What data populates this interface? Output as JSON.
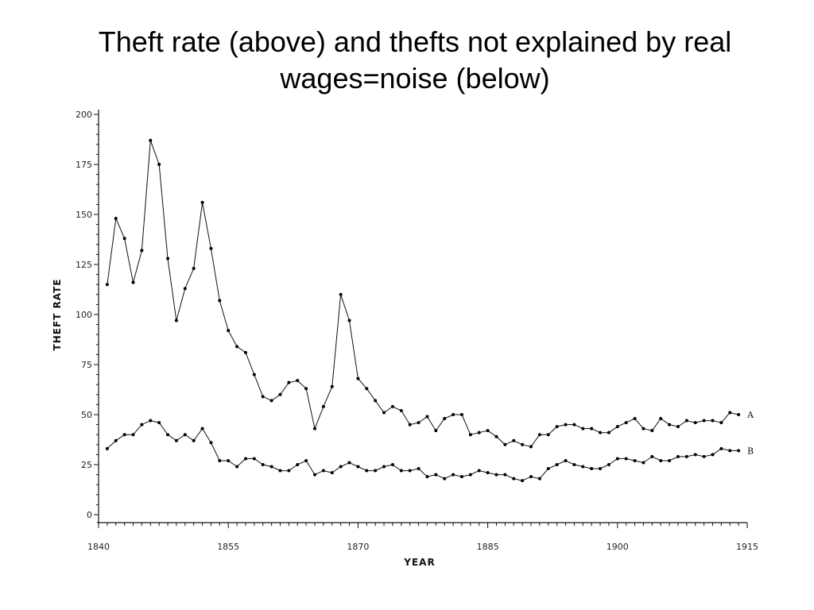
{
  "slide": {
    "title": "Theft rate (above) and thefts not explained by real wages=noise (below)"
  },
  "chart_data": {
    "type": "line",
    "title": "",
    "xlabel": "YEAR",
    "ylabel": "THEFT RATE",
    "xlim": [
      1840,
      1915
    ],
    "ylim": [
      0,
      200
    ],
    "x_ticks": [
      1840,
      1855,
      1870,
      1885,
      1900,
      1915
    ],
    "y_ticks": [
      0,
      25,
      50,
      75,
      100,
      125,
      150,
      175,
      200
    ],
    "grid": false,
    "legend": "none",
    "colors": {
      "line": "#111111",
      "marker": "#000000"
    },
    "series": [
      {
        "name": "A",
        "x": [
          1841,
          1842,
          1843,
          1844,
          1845,
          1846,
          1847,
          1848,
          1849,
          1850,
          1851,
          1852,
          1853,
          1854,
          1855,
          1856,
          1857,
          1858,
          1859,
          1860,
          1861,
          1862,
          1863,
          1864,
          1865,
          1866,
          1867,
          1868,
          1869,
          1870,
          1871,
          1872,
          1873,
          1874,
          1875,
          1876,
          1877,
          1878,
          1879,
          1880,
          1881,
          1882,
          1883,
          1884,
          1885,
          1886,
          1887,
          1888,
          1889,
          1890,
          1891,
          1892,
          1893,
          1894,
          1895,
          1896,
          1897,
          1898,
          1899,
          1900,
          1901,
          1902,
          1903,
          1904,
          1905,
          1906,
          1907,
          1908,
          1909,
          1910,
          1911,
          1912,
          1913,
          1914
        ],
        "values": [
          115,
          148,
          138,
          116,
          132,
          187,
          175,
          128,
          97,
          113,
          123,
          156,
          133,
          107,
          92,
          84,
          81,
          70,
          59,
          57,
          60,
          66,
          67,
          63,
          43,
          54,
          64,
          110,
          97,
          68,
          63,
          57,
          51,
          54,
          52,
          45,
          46,
          49,
          42,
          48,
          50,
          50,
          40,
          41,
          42,
          39,
          35,
          37,
          35,
          34,
          40,
          40,
          44,
          45,
          45,
          43,
          43,
          41,
          41,
          44,
          46,
          48,
          43,
          42,
          48,
          45,
          44,
          47,
          46,
          47,
          47,
          46,
          51,
          50
        ]
      },
      {
        "name": "B",
        "x": [
          1841,
          1842,
          1843,
          1844,
          1845,
          1846,
          1847,
          1848,
          1849,
          1850,
          1851,
          1852,
          1853,
          1854,
          1855,
          1856,
          1857,
          1858,
          1859,
          1860,
          1861,
          1862,
          1863,
          1864,
          1865,
          1866,
          1867,
          1868,
          1869,
          1870,
          1871,
          1872,
          1873,
          1874,
          1875,
          1876,
          1877,
          1878,
          1879,
          1880,
          1881,
          1882,
          1883,
          1884,
          1885,
          1886,
          1887,
          1888,
          1889,
          1890,
          1891,
          1892,
          1893,
          1894,
          1895,
          1896,
          1897,
          1898,
          1899,
          1900,
          1901,
          1902,
          1903,
          1904,
          1905,
          1906,
          1907,
          1908,
          1909,
          1910,
          1911,
          1912,
          1913,
          1914
        ],
        "values": [
          33,
          37,
          40,
          40,
          45,
          47,
          46,
          40,
          37,
          40,
          37,
          43,
          36,
          27,
          27,
          24,
          28,
          28,
          25,
          24,
          22,
          22,
          25,
          27,
          20,
          22,
          21,
          24,
          26,
          24,
          22,
          22,
          24,
          25,
          22,
          22,
          23,
          19,
          20,
          18,
          20,
          19,
          20,
          22,
          21,
          20,
          20,
          18,
          17,
          19,
          18,
          23,
          25,
          27,
          25,
          24,
          23,
          23,
          25,
          28,
          28,
          27,
          26,
          29,
          27,
          27,
          29,
          29,
          30,
          29,
          30,
          33,
          32,
          32
        ]
      }
    ]
  }
}
